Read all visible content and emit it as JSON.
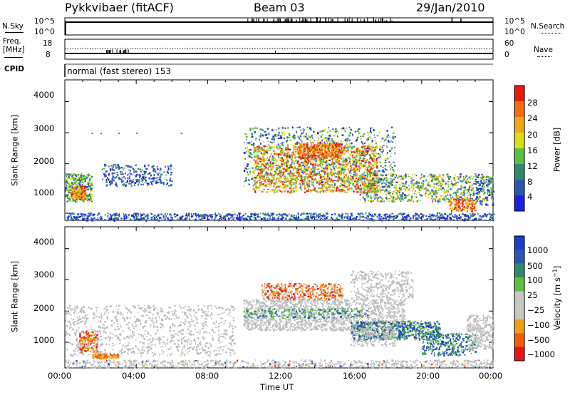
{
  "header": {
    "station": "Pykkvibaer (fitACF)",
    "beam": "Beam 03",
    "date": "29/Jan/2010"
  },
  "strips": {
    "nsky_label": "N.Sky",
    "nsky_top": "10^5",
    "nsky_bottom": "10^0",
    "nsearch_label": "N.Search",
    "nsearch_top": "10^5",
    "nsearch_bottom": "10^0",
    "freq_label": "Freq.",
    "freq_unit": "[MHz]",
    "freq_top": "18",
    "freq_bottom": "8",
    "nave_label": "Nave",
    "nave_top": "60",
    "nave_bottom": "0",
    "cpid_label": "CPID",
    "cpid_text": "normal (fast stereo) 153"
  },
  "colors": {
    "power": [
      "#1e1ee6",
      "#2a56b4",
      "#2e8a6a",
      "#5cc040",
      "#dede18",
      "#f0a818",
      "#f06e10",
      "#e81a0a"
    ],
    "velocity": [
      "#e61414",
      "#f05a0a",
      "#f0a014",
      "#c8c8c0",
      "#c8c8c0",
      "#5cc040",
      "#2e8a6a",
      "#2a56b4",
      "#1e3ac8"
    ],
    "ground_scatter": "#bebebe"
  },
  "chart_data": [
    {
      "type": "heatmap",
      "panel": "power",
      "xlabel": "",
      "ylabel": "Slant Range [km]",
      "x_ticks": [
        "00:00",
        "04:00",
        "08:00",
        "12:00",
        "16:00",
        "20:00",
        "00:00"
      ],
      "x_range_hours": [
        0,
        24
      ],
      "y_ticks": [
        1000,
        2000,
        3000,
        4000
      ],
      "ylim": [
        180,
        4700
      ],
      "colorbar": {
        "label": "Power [dB]",
        "ticks": [
          4,
          8,
          12,
          16,
          20,
          24,
          28
        ],
        "range": [
          0,
          32
        ]
      },
      "echo_regions": [
        {
          "t": [
            0.0,
            1.5
          ],
          "r": [
            800,
            1700
          ],
          "level": "low-mid"
        },
        {
          "t": [
            0.2,
            1.2
          ],
          "r": [
            900,
            1300
          ],
          "level": "mid"
        },
        {
          "t": [
            2.0,
            6.0
          ],
          "r": [
            1300,
            2000
          ],
          "level": "low"
        },
        {
          "t": [
            0.0,
            24.0
          ],
          "r": [
            200,
            450
          ],
          "level": "low"
        },
        {
          "t": [
            10.0,
            18.5
          ],
          "r": [
            900,
            3200
          ],
          "level": "high"
        },
        {
          "t": [
            17.0,
            23.5
          ],
          "r": [
            600,
            1900
          ],
          "level": "mid"
        },
        {
          "t": [
            22.0,
            23.0
          ],
          "r": [
            500,
            900
          ],
          "level": "high"
        }
      ]
    },
    {
      "type": "heatmap",
      "panel": "velocity",
      "xlabel": "Time UT",
      "ylabel": "Slant Range [km]",
      "x_ticks": [
        "00:00",
        "04:00",
        "08:00",
        "12:00",
        "16:00",
        "20:00",
        "00:00"
      ],
      "x_range_hours": [
        0,
        24
      ],
      "y_ticks": [
        1000,
        2000,
        3000,
        4000
      ],
      "ylim": [
        180,
        4700
      ],
      "colorbar": {
        "label": "Velocity [m s^-1]",
        "ticks": [
          "1000",
          "500",
          "100",
          "25",
          "-25",
          "-100",
          "-500",
          "-1000"
        ]
      },
      "echo_regions": [
        {
          "t": [
            0.0,
            9.5
          ],
          "r": [
            300,
            2200
          ],
          "class": "ground scatter"
        },
        {
          "t": [
            10.0,
            19.0
          ],
          "r": [
            1500,
            2300
          ],
          "class": "ground scatter"
        },
        {
          "t": [
            12.0,
            15.0
          ],
          "r": [
            2400,
            2900
          ],
          "class": "negative"
        },
        {
          "t": [
            16.0,
            21.0
          ],
          "r": [
            1100,
            1700
          ],
          "class": "positive"
        },
        {
          "t": [
            20.0,
            23.0
          ],
          "r": [
            600,
            1300
          ],
          "class": "positive"
        },
        {
          "t": [
            1.5,
            3.0
          ],
          "r": [
            500,
            700
          ],
          "class": "negative"
        }
      ]
    }
  ],
  "time_ticks": [
    "00:00",
    "04:00",
    "08:00",
    "12:00",
    "16:00",
    "20:00",
    "00:00"
  ],
  "time_label": "Time UT",
  "range_ticks": [
    "1000",
    "2000",
    "3000",
    "4000"
  ],
  "range_label": "Slant Range [km]",
  "power_ticks": [
    "4",
    "8",
    "12",
    "16",
    "20",
    "24",
    "28"
  ],
  "power_label": "Power [dB]",
  "velocity_ticks": [
    "1000",
    "500",
    "100",
    "25",
    "−25",
    "−100",
    "−500",
    "−1000"
  ],
  "velocity_label": "Velocity [m s",
  "velocity_label_exp": "−1",
  "velocity_label_close": "]"
}
